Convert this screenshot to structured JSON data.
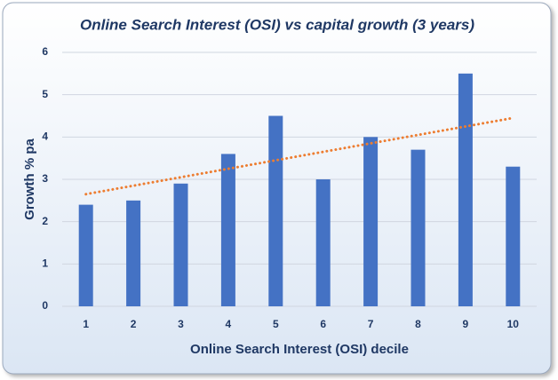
{
  "chart_data": {
    "type": "bar",
    "title": "Online  Search  Interest (OSI) vs capital growth  (3 years)",
    "x_label": "Online Search Interest (OSI) decile",
    "y_label": "Growth % pa",
    "categories": [
      "1",
      "2",
      "3",
      "4",
      "5",
      "6",
      "7",
      "8",
      "9",
      "10"
    ],
    "values": [
      2.4,
      2.5,
      2.9,
      3.6,
      4.5,
      3.0,
      4.0,
      3.7,
      5.5,
      3.3
    ],
    "color": "#4472c4",
    "ylim": [
      0,
      6
    ],
    "yticks": [
      0,
      1,
      2,
      3,
      4,
      5,
      6
    ],
    "grid": true,
    "trendline": {
      "type": "linear",
      "color": "#ed7d31",
      "values": [
        2.65,
        4.45
      ]
    }
  }
}
